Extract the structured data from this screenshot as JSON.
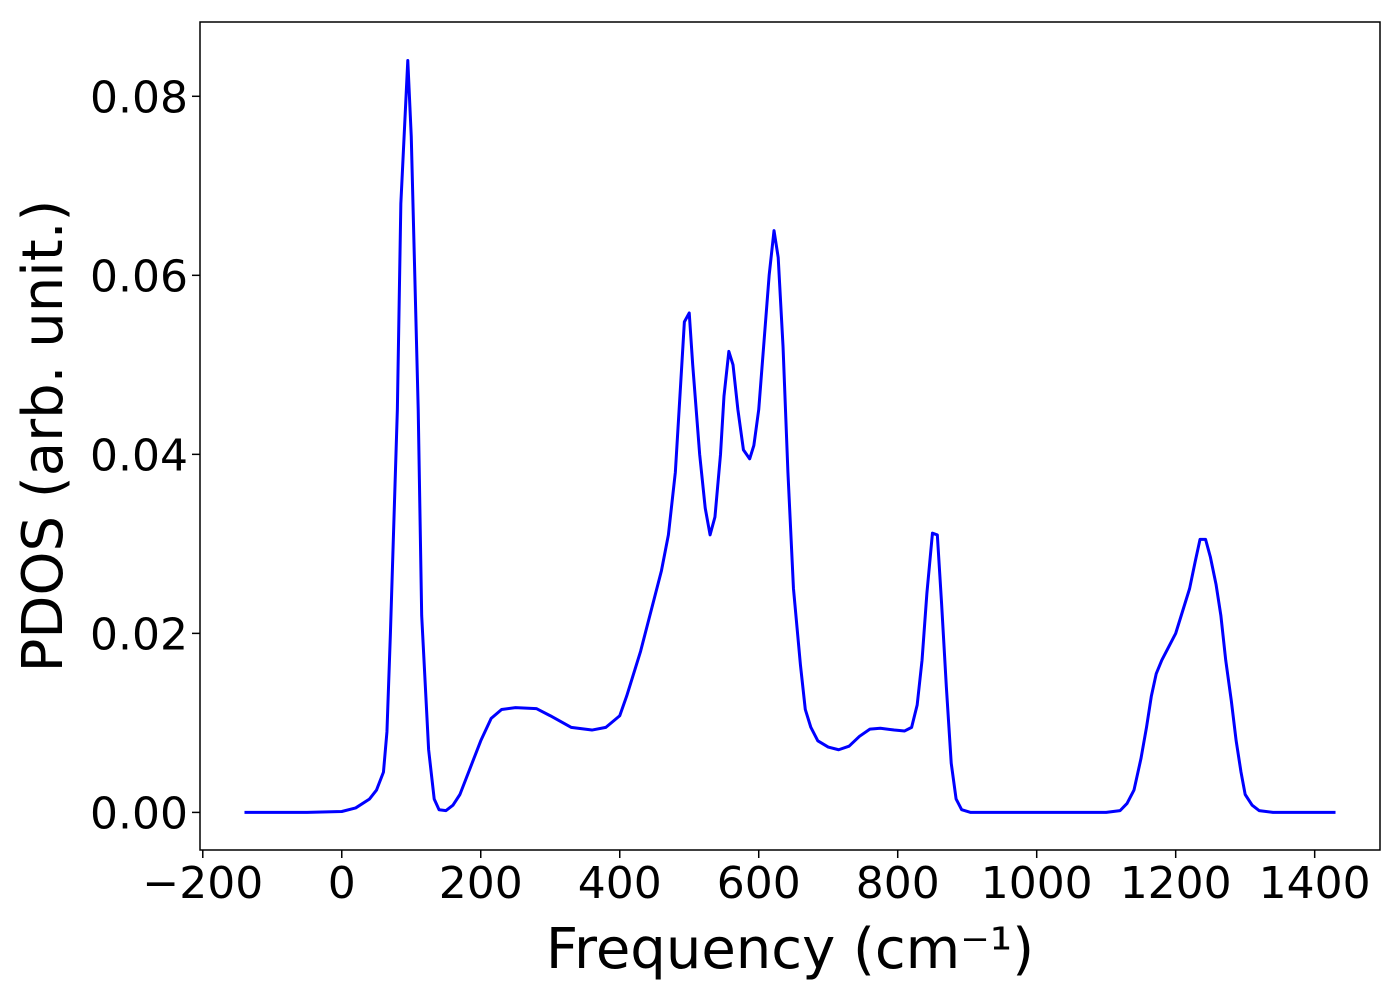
{
  "chart_data": {
    "type": "line",
    "x_label": "Frequency (cm⁻¹)",
    "y_label": "PDOS (arb. unit.)",
    "xlim": [
      -204,
      1494
    ],
    "ylim": [
      -0.0042,
      0.0883
    ],
    "xticks": [
      {
        "value": -200,
        "label": "−200"
      },
      0,
      200,
      400,
      600,
      800,
      1000,
      1200,
      1400
    ],
    "yticks": [
      {
        "value": 0,
        "label": "0.00"
      },
      0.02,
      0.04,
      0.06,
      0.08
    ],
    "series": [
      {
        "color": "#0000ff",
        "x": [
          -140,
          -100,
          -50,
          0,
          20,
          40,
          50,
          60,
          65,
          70,
          80,
          85,
          95,
          100,
          110,
          115,
          125,
          133,
          140,
          150,
          160,
          170,
          185,
          200,
          215,
          230,
          250,
          280,
          300,
          330,
          360,
          380,
          400,
          410,
          430,
          450,
          460,
          470,
          480,
          487,
          493,
          500,
          505,
          515,
          523,
          530,
          537,
          545,
          550,
          557,
          563,
          570,
          578,
          587,
          593,
          600,
          607,
          615,
          622,
          628,
          635,
          642,
          650,
          660,
          667,
          675,
          685,
          700,
          715,
          730,
          745,
          760,
          775,
          795,
          810,
          820,
          828,
          835,
          842,
          850,
          857,
          863,
          870,
          877,
          884,
          892,
          905,
          1000,
          1100,
          1120,
          1130,
          1140,
          1150,
          1158,
          1165,
          1172,
          1180,
          1190,
          1200,
          1210,
          1220,
          1228,
          1235,
          1243,
          1250,
          1258,
          1265,
          1272,
          1280,
          1287,
          1294,
          1300,
          1310,
          1320,
          1340,
          1400,
          1430
        ],
        "values": [
          0,
          0,
          0,
          0.0001,
          0.0005,
          0.0015,
          0.0025,
          0.0045,
          0.009,
          0.02,
          0.045,
          0.068,
          0.084,
          0.0755,
          0.045,
          0.022,
          0.007,
          0.0015,
          0.0003,
          0.0002,
          0.0008,
          0.002,
          0.005,
          0.008,
          0.0105,
          0.0115,
          0.0117,
          0.0116,
          0.0108,
          0.0095,
          0.0092,
          0.0095,
          0.0108,
          0.013,
          0.018,
          0.024,
          0.027,
          0.031,
          0.038,
          0.047,
          0.0548,
          0.0558,
          0.05,
          0.04,
          0.034,
          0.031,
          0.033,
          0.04,
          0.0465,
          0.0515,
          0.05,
          0.045,
          0.0405,
          0.0395,
          0.041,
          0.045,
          0.052,
          0.06,
          0.065,
          0.062,
          0.052,
          0.038,
          0.025,
          0.0165,
          0.0115,
          0.0095,
          0.008,
          0.0073,
          0.007,
          0.0074,
          0.0085,
          0.0093,
          0.0094,
          0.0092,
          0.0091,
          0.0095,
          0.012,
          0.017,
          0.0245,
          0.0312,
          0.031,
          0.0235,
          0.014,
          0.0055,
          0.0015,
          0.0003,
          0,
          0,
          0,
          0.0002,
          0.001,
          0.0025,
          0.006,
          0.0095,
          0.013,
          0.0155,
          0.017,
          0.0185,
          0.02,
          0.0225,
          0.025,
          0.028,
          0.0305,
          0.0305,
          0.0285,
          0.0255,
          0.022,
          0.017,
          0.0125,
          0.008,
          0.0045,
          0.002,
          0.0008,
          0.0002,
          0,
          0,
          0
        ]
      }
    ]
  }
}
